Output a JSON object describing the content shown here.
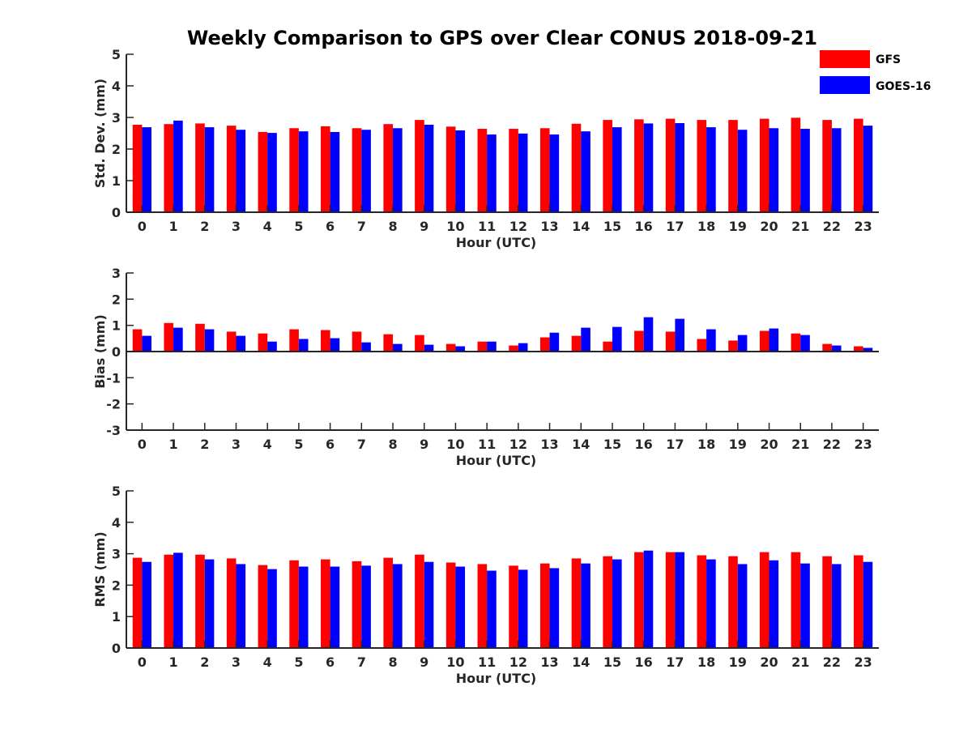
{
  "title": "Weekly Comparison to GPS over Clear CONUS 2018-09-21",
  "colors": {
    "GFS": "#ff0000",
    "GOES-16": "#0000ff"
  },
  "legend": {
    "placement": "top-right",
    "entries": [
      "GFS",
      "GOES-16"
    ]
  },
  "chart_data": [
    {
      "type": "bar",
      "ylabel": "Std. Dev. (mm)",
      "xlabel": "Hour (UTC)",
      "ylim": [
        0,
        5
      ],
      "yticks": [
        0,
        1,
        2,
        3,
        4,
        5
      ],
      "categories": [
        "0",
        "1",
        "2",
        "3",
        "4",
        "5",
        "6",
        "7",
        "8",
        "9",
        "10",
        "11",
        "12",
        "13",
        "14",
        "15",
        "16",
        "17",
        "18",
        "19",
        "20",
        "21",
        "22",
        "23"
      ],
      "series": [
        {
          "name": "GFS",
          "values": [
            2.77,
            2.79,
            2.81,
            2.74,
            2.54,
            2.66,
            2.72,
            2.66,
            2.79,
            2.92,
            2.71,
            2.64,
            2.64,
            2.66,
            2.8,
            2.92,
            2.94,
            2.96,
            2.92,
            2.92,
            2.96,
            2.99,
            2.92,
            2.96
          ]
        },
        {
          "name": "GOES-16",
          "values": [
            2.69,
            2.9,
            2.69,
            2.61,
            2.51,
            2.56,
            2.54,
            2.61,
            2.66,
            2.77,
            2.59,
            2.46,
            2.49,
            2.46,
            2.56,
            2.69,
            2.81,
            2.82,
            2.69,
            2.61,
            2.66,
            2.64,
            2.66,
            2.74
          ]
        }
      ]
    },
    {
      "type": "bar",
      "ylabel": "Bias (mm)",
      "xlabel": "Hour (UTC)",
      "ylim": [
        -3,
        3
      ],
      "yticks": [
        -3,
        -2,
        -1,
        0,
        1,
        2,
        3
      ],
      "categories": [
        "0",
        "1",
        "2",
        "3",
        "4",
        "5",
        "6",
        "7",
        "8",
        "9",
        "10",
        "11",
        "12",
        "13",
        "14",
        "15",
        "16",
        "17",
        "18",
        "19",
        "20",
        "21",
        "22",
        "23"
      ],
      "series": [
        {
          "name": "GFS",
          "values": [
            0.85,
            1.09,
            1.06,
            0.76,
            0.69,
            0.85,
            0.82,
            0.76,
            0.66,
            0.63,
            0.29,
            0.38,
            0.23,
            0.54,
            0.6,
            0.38,
            0.79,
            0.76,
            0.48,
            0.42,
            0.79,
            0.69,
            0.29,
            0.2
          ]
        },
        {
          "name": "GOES-16",
          "values": [
            0.6,
            0.91,
            0.85,
            0.6,
            0.38,
            0.48,
            0.51,
            0.35,
            0.29,
            0.26,
            0.2,
            0.38,
            0.32,
            0.72,
            0.91,
            0.94,
            1.31,
            1.25,
            0.85,
            0.63,
            0.88,
            0.63,
            0.23,
            0.14
          ]
        }
      ]
    },
    {
      "type": "bar",
      "ylabel": "RMS (mm)",
      "xlabel": "Hour (UTC)",
      "ylim": [
        0,
        5
      ],
      "yticks": [
        0,
        1,
        2,
        3,
        4,
        5
      ],
      "categories": [
        "0",
        "1",
        "2",
        "3",
        "4",
        "5",
        "6",
        "7",
        "8",
        "9",
        "10",
        "11",
        "12",
        "13",
        "14",
        "15",
        "16",
        "17",
        "18",
        "19",
        "20",
        "21",
        "22",
        "23"
      ],
      "series": [
        {
          "name": "GFS",
          "values": [
            2.87,
            2.97,
            2.97,
            2.85,
            2.64,
            2.79,
            2.82,
            2.76,
            2.87,
            2.97,
            2.72,
            2.67,
            2.62,
            2.69,
            2.85,
            2.92,
            3.05,
            3.05,
            2.95,
            2.92,
            3.05,
            3.05,
            2.92,
            2.95
          ]
        },
        {
          "name": "GOES-16",
          "values": [
            2.74,
            3.03,
            2.82,
            2.67,
            2.51,
            2.59,
            2.59,
            2.62,
            2.67,
            2.74,
            2.59,
            2.46,
            2.49,
            2.54,
            2.69,
            2.82,
            3.1,
            3.05,
            2.82,
            2.67,
            2.79,
            2.69,
            2.67,
            2.74
          ]
        }
      ]
    }
  ]
}
